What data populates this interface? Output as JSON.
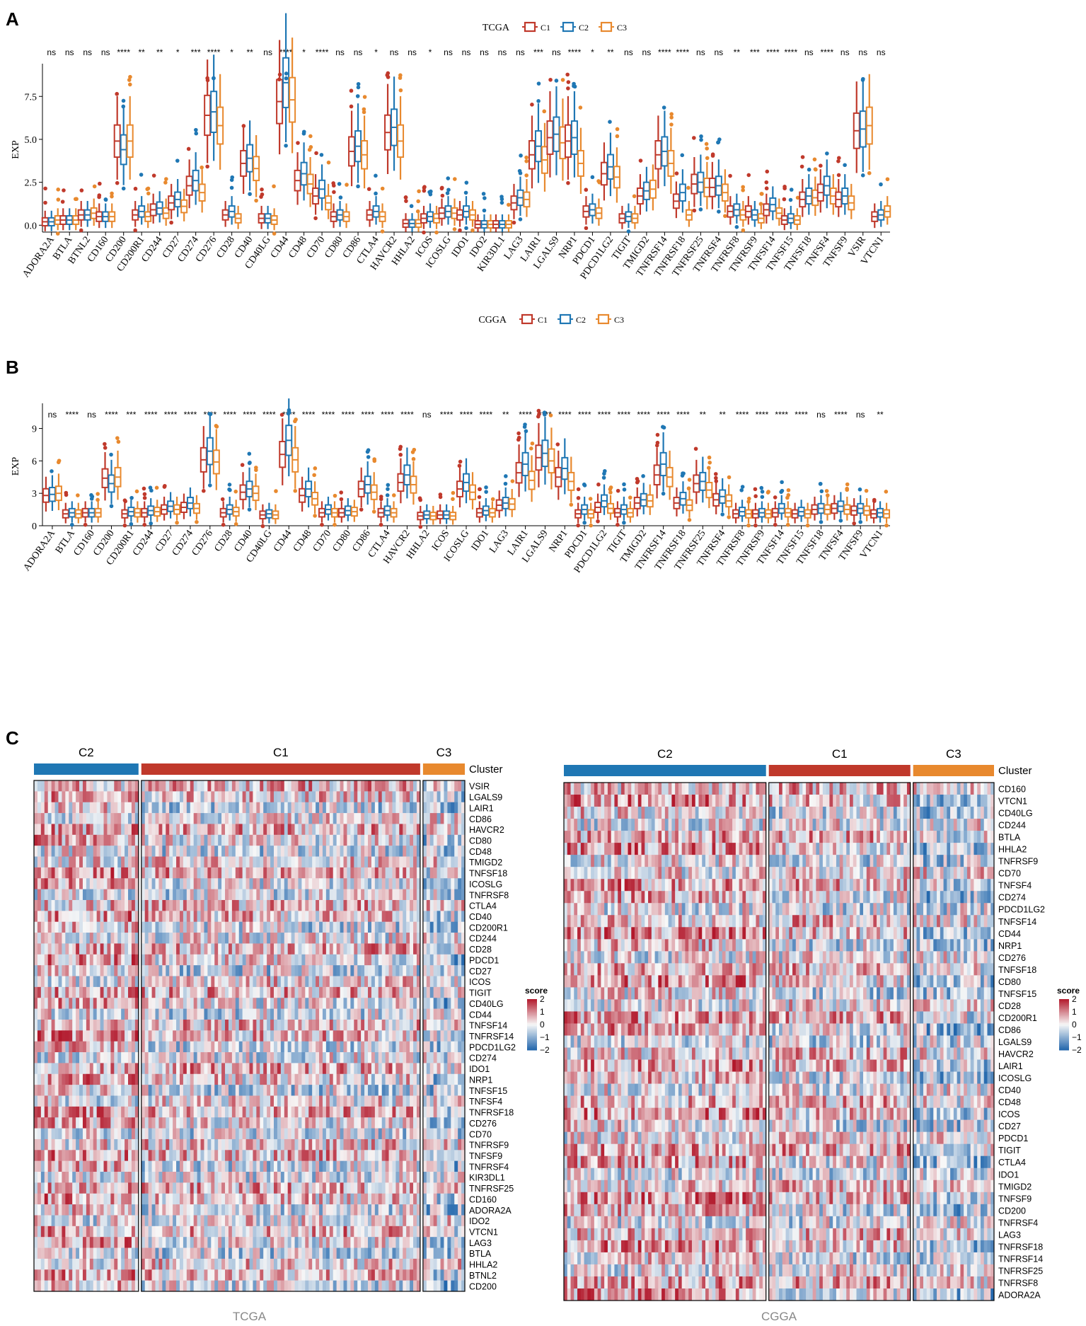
{
  "colors": {
    "C1": "#c0392b",
    "C2": "#1f77b4",
    "C3": "#e8892e",
    "hm_low": "#2166ac",
    "hm_mid": "#f7f7f7",
    "hm_high": "#b2182b"
  },
  "panels": {
    "A": {
      "label": "A"
    },
    "B": {
      "label": "B"
    },
    "C": {
      "label": "C"
    }
  },
  "chart_data": [
    {
      "id": "A",
      "type": "box",
      "title": "TCGA",
      "legend": [
        "C1",
        "C2",
        "C3"
      ],
      "ylabel": "EXP",
      "ylim": [
        -0.4,
        9.2
      ],
      "yticks": [
        0.0,
        2.5,
        5.0,
        7.5
      ],
      "ytick_labels": [
        "0.0",
        "2.5",
        "5.0",
        "7.5"
      ],
      "categories": [
        "ADORA2A",
        "BTLA",
        "BTNL2",
        "CD160",
        "CD200",
        "CD200R1",
        "CD244",
        "CD27",
        "CD274",
        "CD276",
        "CD28",
        "CD40",
        "CD40LG",
        "CD44",
        "CD48",
        "CD70",
        "CD80",
        "CD86",
        "CTLA4",
        "HAVCR2",
        "HHLA2",
        "ICOS",
        "ICOSLG",
        "IDO1",
        "IDO2",
        "KIR3DL1",
        "LAG3",
        "LAIR1",
        "LGALS9",
        "NRP1",
        "PDCD1",
        "PDCD1LG2",
        "TIGIT",
        "TMIGD2",
        "TNFRSF14",
        "TNFRSF18",
        "TNFRSF25",
        "TNFRSF4",
        "TNFRSF8",
        "TNFRSF9",
        "TNFSF14",
        "TNFSF15",
        "TNFSF18",
        "TNFSF4",
        "TNFSF9",
        "VSIR",
        "VTCN1"
      ],
      "significance": [
        "ns",
        "ns",
        "ns",
        "ns",
        "****",
        "**",
        "**",
        "*",
        "***",
        "****",
        "*",
        "**",
        "ns",
        "****",
        "*",
        "****",
        "ns",
        "ns",
        "*",
        "ns",
        "ns",
        "*",
        "ns",
        "ns",
        "ns",
        "ns",
        "ns",
        "***",
        "ns",
        "****",
        "*",
        "**",
        "ns",
        "ns",
        "****",
        "****",
        "ns",
        "ns",
        "**",
        "***",
        "****",
        "****",
        "ns",
        "****",
        "ns",
        "ns",
        "ns"
      ],
      "medians": {
        "C1": [
          0.2,
          0.3,
          0.6,
          0.5,
          4.9,
          0.6,
          0.9,
          1.3,
          2.3,
          6.4,
          0.6,
          3.6,
          0.4,
          7.2,
          2.6,
          1.7,
          0.5,
          4.3,
          0.6,
          5.4,
          0.1,
          0.4,
          0.7,
          0.6,
          0.05,
          0.05,
          1.3,
          4.1,
          5.1,
          4.9,
          0.8,
          3.0,
          0.4,
          1.7,
          4.1,
          1.4,
          2.4,
          2.2,
          0.8,
          0.8,
          0.9,
          0.3,
          1.5,
          1.9,
          1.5,
          5.5,
          0.5
        ],
        "C2": [
          0.2,
          0.3,
          0.6,
          0.5,
          4.4,
          0.8,
          1.0,
          1.5,
          2.6,
          6.6,
          0.8,
          3.9,
          0.4,
          8.3,
          3.0,
          2.1,
          0.6,
          4.6,
          0.8,
          5.7,
          0.1,
          0.5,
          0.8,
          0.8,
          0.05,
          0.05,
          1.6,
          4.6,
          5.3,
          5.1,
          0.9,
          3.4,
          0.5,
          2.0,
          4.3,
          1.9,
          2.5,
          2.3,
          0.9,
          0.6,
          1.2,
          0.4,
          1.7,
          2.3,
          1.7,
          5.6,
          0.6
        ],
        "C3": [
          0.3,
          0.3,
          0.7,
          0.5,
          4.9,
          0.5,
          0.7,
          1.1,
          1.9,
          5.8,
          0.4,
          3.3,
          0.3,
          7.3,
          2.4,
          1.3,
          0.5,
          4.1,
          0.5,
          4.9,
          0.1,
          0.4,
          0.7,
          0.6,
          0.05,
          0.05,
          1.5,
          3.8,
          4.8,
          3.6,
          0.7,
          2.8,
          0.4,
          2.1,
          3.6,
          0.6,
          2.2,
          1.9,
          0.6,
          0.4,
          0.7,
          0.3,
          1.6,
          1.7,
          1.3,
          5.8,
          0.8
        ]
      }
    },
    {
      "id": "B",
      "type": "box",
      "title": "CGGA",
      "legend": [
        "C1",
        "C2",
        "C3"
      ],
      "ylabel": "EXP",
      "ylim": [
        0,
        11
      ],
      "yticks": [
        0,
        3,
        6,
        9
      ],
      "ytick_labels": [
        "0",
        "3",
        "6",
        "9"
      ],
      "categories": [
        "ADORA2A",
        "BTLA",
        "CD160",
        "CD200",
        "CD200R1",
        "CD244",
        "CD27",
        "CD274",
        "CD276",
        "CD28",
        "CD40",
        "CD40LG",
        "CD44",
        "CD48",
        "CD70",
        "CD80",
        "CD86",
        "CTLA4",
        "HAVCR2",
        "HHLA2",
        "ICOS",
        "ICOSLG",
        "IDO1",
        "LAG3",
        "LAIR1",
        "LGALS9",
        "NRP1",
        "PDCD1",
        "PDCD1LG2",
        "TIGIT",
        "TMIGD2",
        "TNFRSF14",
        "TNFRSF18",
        "TNFRSF25",
        "TNFRSF4",
        "TNFRSF8",
        "TNFRSF9",
        "TNFSF14",
        "TNFSF15",
        "TNFSF18",
        "TNFSF4",
        "TNFSF9",
        "VTCN1"
      ],
      "significance": [
        "ns",
        "****",
        "ns",
        "****",
        "***",
        "****",
        "****",
        "****",
        "****",
        "****",
        "****",
        "****",
        "****",
        "****",
        "****",
        "****",
        "****",
        "****",
        "****",
        "ns",
        "****",
        "****",
        "****",
        "**",
        "****",
        "****",
        "****",
        "****",
        "****",
        "****",
        "****",
        "****",
        "****",
        "**",
        "**",
        "****",
        "****",
        "****",
        "****",
        "ns",
        "****",
        "ns",
        "**"
      ],
      "medians": {
        "C1": [
          2.8,
          1.1,
          1.2,
          4.4,
          1.1,
          1.2,
          1.5,
          1.7,
          6.1,
          1.2,
          3.1,
          1.0,
          6.6,
          2.8,
          1.2,
          1.2,
          3.4,
          1.2,
          4.0,
          0.9,
          1.0,
          3.4,
          1.2,
          1.9,
          4.9,
          6.3,
          4.5,
          1.1,
          1.7,
          1.2,
          2.1,
          4.7,
          2.1,
          3.9,
          2.4,
          1.1,
          1.1,
          1.2,
          1.1,
          1.5,
          1.6,
          1.4,
          1.1
        ],
        "C2": [
          2.9,
          1.2,
          1.2,
          3.9,
          1.3,
          1.4,
          1.8,
          2.1,
          6.9,
          1.5,
          3.4,
          1.1,
          7.9,
          3.4,
          1.5,
          1.4,
          3.8,
          1.4,
          4.7,
          1.0,
          1.0,
          4.0,
          1.4,
          2.1,
          5.7,
          6.7,
          5.3,
          1.5,
          2.3,
          1.5,
          2.4,
          5.7,
          2.5,
          4.1,
          2.7,
          1.3,
          1.2,
          1.6,
          1.3,
          1.6,
          1.8,
          1.6,
          1.2
        ],
        "C3": [
          3.0,
          1.1,
          1.2,
          4.5,
          1.2,
          1.3,
          1.5,
          1.6,
          5.9,
          1.3,
          3.0,
          1.0,
          6.1,
          2.5,
          1.2,
          1.3,
          3.1,
          1.2,
          3.8,
          0.9,
          0.9,
          3.1,
          1.2,
          2.0,
          4.2,
          6.0,
          4.1,
          1.1,
          1.6,
          1.2,
          2.3,
          4.5,
          1.9,
          3.3,
          2.3,
          1.1,
          1.1,
          1.2,
          1.1,
          1.5,
          1.5,
          1.4,
          1.1
        ]
      }
    },
    {
      "id": "C1",
      "type": "heatmap",
      "title": "TCGA",
      "annotation_label": "Cluster",
      "clusters": [
        {
          "name": "C2",
          "count": 30
        },
        {
          "name": "C1",
          "count": 80
        },
        {
          "name": "C3",
          "count": 12
        }
      ],
      "rows": [
        "VSIR",
        "LGALS9",
        "LAIR1",
        "CD86",
        "HAVCR2",
        "CD80",
        "CD48",
        "TMIGD2",
        "TNFSF18",
        "ICOSLG",
        "TNFRSF8",
        "CTLA4",
        "CD40",
        "CD200R1",
        "CD244",
        "CD28",
        "PDCD1",
        "CD27",
        "ICOS",
        "TIGIT",
        "CD40LG",
        "CD44",
        "TNFSF14",
        "TNFRSF14",
        "PDCD1LG2",
        "CD274",
        "IDO1",
        "NRP1",
        "TNFSF15",
        "TNFSF4",
        "TNFRSF18",
        "CD276",
        "CD70",
        "TNFRSF9",
        "TNFSF9",
        "TNFRSF4",
        "KIR3DL1",
        "TNFRSF25",
        "CD160",
        "ADORA2A",
        "IDO2",
        "VTCN1",
        "LAG3",
        "BTLA",
        "HHLA2",
        "BTNL2",
        "CD200"
      ],
      "legend_title": "score",
      "legend_ticks": [
        "2",
        "1",
        "0",
        "−1",
        "−2"
      ],
      "caption": "TCGA"
    },
    {
      "id": "C2",
      "type": "heatmap",
      "title": "CGGA",
      "annotation_label": "Cluster",
      "clusters": [
        {
          "name": "C2",
          "count": 60
        },
        {
          "name": "C1",
          "count": 42
        },
        {
          "name": "C3",
          "count": 24
        }
      ],
      "rows": [
        "CD160",
        "VTCN1",
        "CD40LG",
        "CD244",
        "BTLA",
        "HHLA2",
        "TNFRSF9",
        "CD70",
        "TNFSF4",
        "CD274",
        "PDCD1LG2",
        "TNFSF14",
        "CD44",
        "NRP1",
        "CD276",
        "TNFSF18",
        "CD80",
        "TNFSF15",
        "CD28",
        "CD200R1",
        "CD86",
        "LGALS9",
        "HAVCR2",
        "LAIR1",
        "ICOSLG",
        "CD40",
        "CD48",
        "ICOS",
        "CD27",
        "PDCD1",
        "TIGIT",
        "CTLA4",
        "IDO1",
        "TMIGD2",
        "TNFSF9",
        "CD200",
        "TNFRSF4",
        "LAG3",
        "TNFRSF18",
        "TNFRSF14",
        "TNFRSF25",
        "TNFRSF8",
        "ADORA2A"
      ],
      "legend_title": "score",
      "legend_ticks": [
        "2",
        "1",
        "0",
        "−1",
        "−2"
      ],
      "caption": "CGGA"
    }
  ]
}
